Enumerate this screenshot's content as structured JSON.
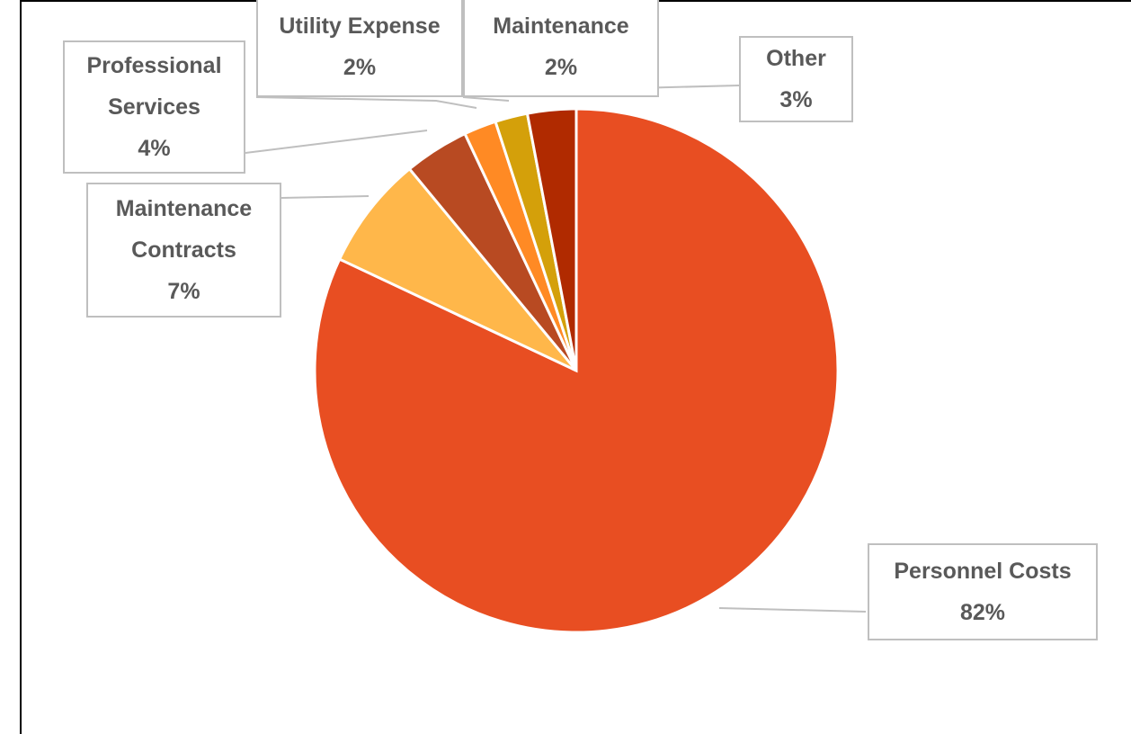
{
  "chart_data": {
    "type": "pie",
    "categories": [
      "Personnel Costs",
      "Maintenance Contracts",
      "Professional Services",
      "Utility Expense",
      "Maintenance",
      "Other"
    ],
    "values": [
      82,
      7,
      4,
      2,
      2,
      3
    ],
    "value_labels": [
      "82%",
      "7%",
      "4%",
      "2%",
      "2%",
      "3%"
    ],
    "colors": [
      "#e84e22",
      "#ffb74a",
      "#b84a22",
      "#ff8a24",
      "#d4a00a",
      "#b02a00"
    ]
  }
}
